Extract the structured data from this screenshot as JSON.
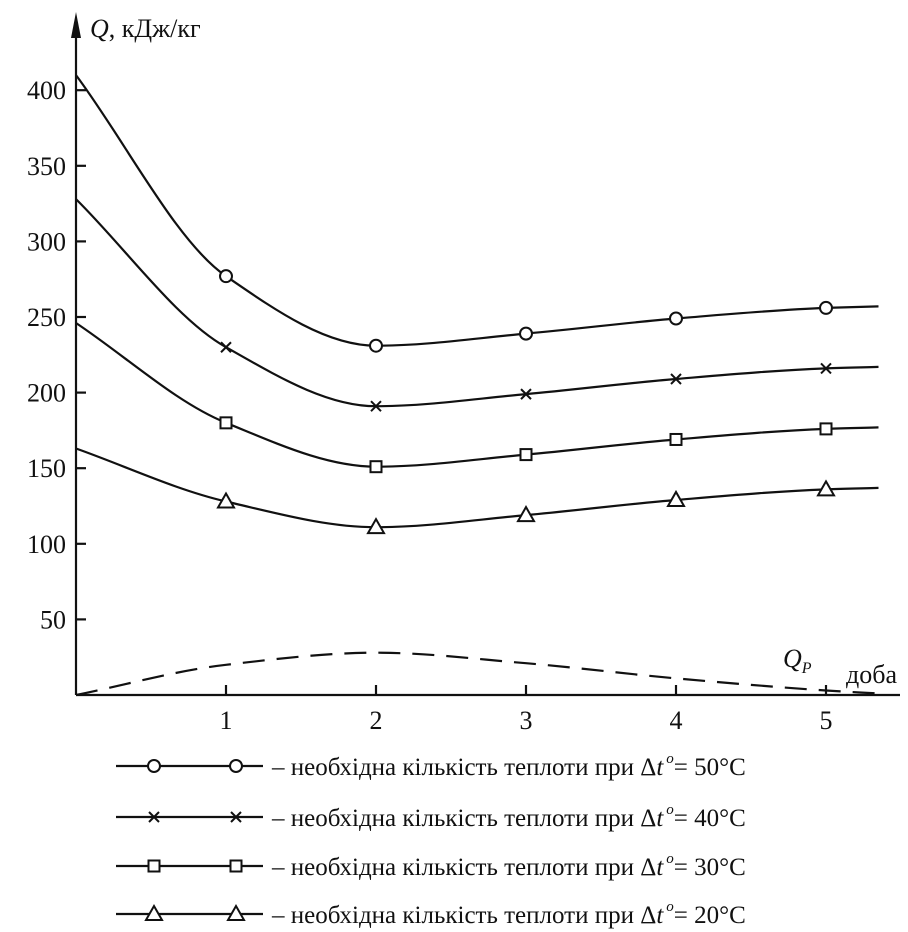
{
  "chart_data": {
    "type": "line",
    "y_axis_title": {
      "symbol": "Q",
      "unit": ", кДж/кг"
    },
    "x_axis_title": "доба",
    "xlim": [
      0,
      5.35
    ],
    "ylim": [
      0,
      420
    ],
    "x_ticks": [
      1,
      2,
      3,
      4,
      5
    ],
    "y_ticks": [
      50,
      100,
      150,
      200,
      250,
      300,
      350,
      400
    ],
    "series": [
      {
        "marker": "circle",
        "legend": {
          "prefix": "– необхідна кількість теплоти при Δ",
          "var": "t",
          "sup": "o",
          "suffix": "= 50°C"
        },
        "x": [
          0,
          1,
          2,
          3,
          4,
          5,
          5.35
        ],
        "y": [
          410,
          277,
          231,
          239,
          249,
          256,
          257
        ]
      },
      {
        "marker": "x",
        "legend": {
          "prefix": "– необхідна кількість теплоти при Δ",
          "var": "t",
          "sup": "o",
          "suffix": "= 40°C"
        },
        "x": [
          0,
          1,
          2,
          3,
          4,
          5,
          5.35
        ],
        "y": [
          328,
          230,
          191,
          199,
          209,
          216,
          217
        ]
      },
      {
        "marker": "square",
        "legend": {
          "prefix": "– необхідна кількість теплоти при Δ",
          "var": "t",
          "sup": "o",
          "suffix": "= 30°C"
        },
        "x": [
          0,
          1,
          2,
          3,
          4,
          5,
          5.35
        ],
        "y": [
          246,
          180,
          151,
          159,
          169,
          176,
          177
        ]
      },
      {
        "marker": "triangle",
        "legend": {
          "prefix": "– необхідна кількість теплоти при Δ",
          "var": "t",
          "sup": "o",
          "suffix": "= 20°C"
        },
        "x": [
          0,
          1,
          2,
          3,
          4,
          5,
          5.35
        ],
        "y": [
          163,
          128,
          111,
          119,
          129,
          136,
          137
        ]
      }
    ],
    "dashed_series": {
      "label_symbol": "Q",
      "label_sub": "P",
      "x": [
        0,
        1,
        2,
        3,
        4,
        5,
        5.35
      ],
      "y": [
        0,
        20,
        28,
        21,
        11,
        3,
        1
      ]
    }
  }
}
